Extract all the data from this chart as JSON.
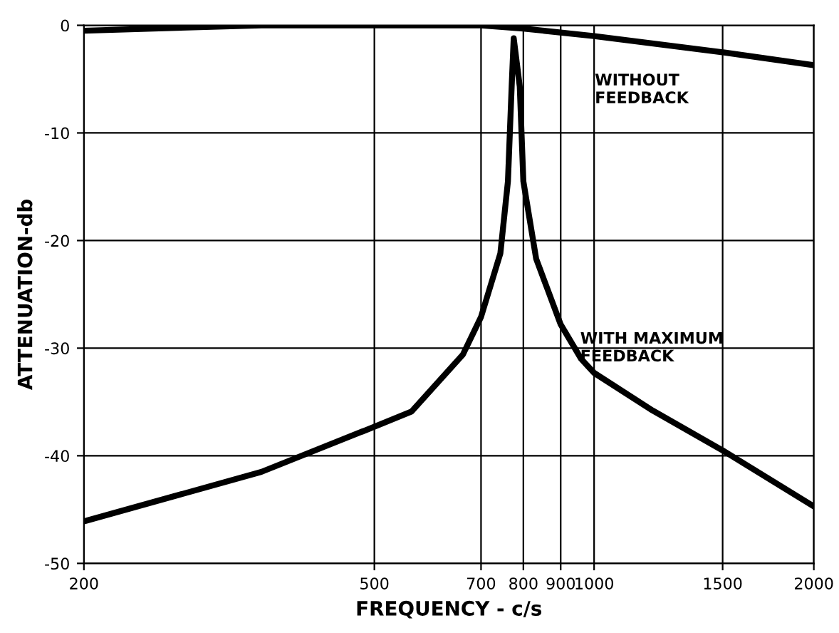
{
  "chart_data": {
    "type": "line",
    "xlabel": "FREQUENCY - c/s",
    "ylabel": "ATTENUATION-db",
    "log": "x",
    "xlim": [
      200,
      2000
    ],
    "xticks": [
      200,
      500,
      700,
      800,
      900,
      1000,
      1500,
      2000
    ],
    "ylim": [
      -50,
      0
    ],
    "yticks": [
      0,
      -10,
      -20,
      -30,
      -40,
      -50
    ],
    "grid": true,
    "legend": false,
    "marker": "none",
    "line_style": "solid",
    "series": [
      {
        "color": "#000000",
        "x": [
          200,
          350,
          500,
          700,
          800,
          1000,
          1500,
          2000
        ],
        "values": [
          -0.5,
          0,
          0,
          0,
          -0.3,
          -1,
          -2.5,
          -3.7
        ]
      },
      {
        "color": "#000000",
        "x": [
          200,
          350,
          500,
          562,
          661,
          700,
          744,
          762,
          771,
          776,
          791,
          800,
          833,
          900,
          960,
          1000,
          1203,
          1500,
          2000
        ],
        "values": [
          -46.1,
          -41.5,
          -37.3,
          -35.9,
          -30.6,
          -27.1,
          -21.2,
          -14.5,
          -5.7,
          -1.2,
          -5.7,
          -14.5,
          -21.7,
          -27.8,
          -31,
          -32.3,
          -35.8,
          -39.5,
          -44.7
        ]
      }
    ],
    "annotations": [
      "WITHOUT\nFEEDBACK",
      "WITH MAXIMUM\nFEEDBACK"
    ]
  }
}
